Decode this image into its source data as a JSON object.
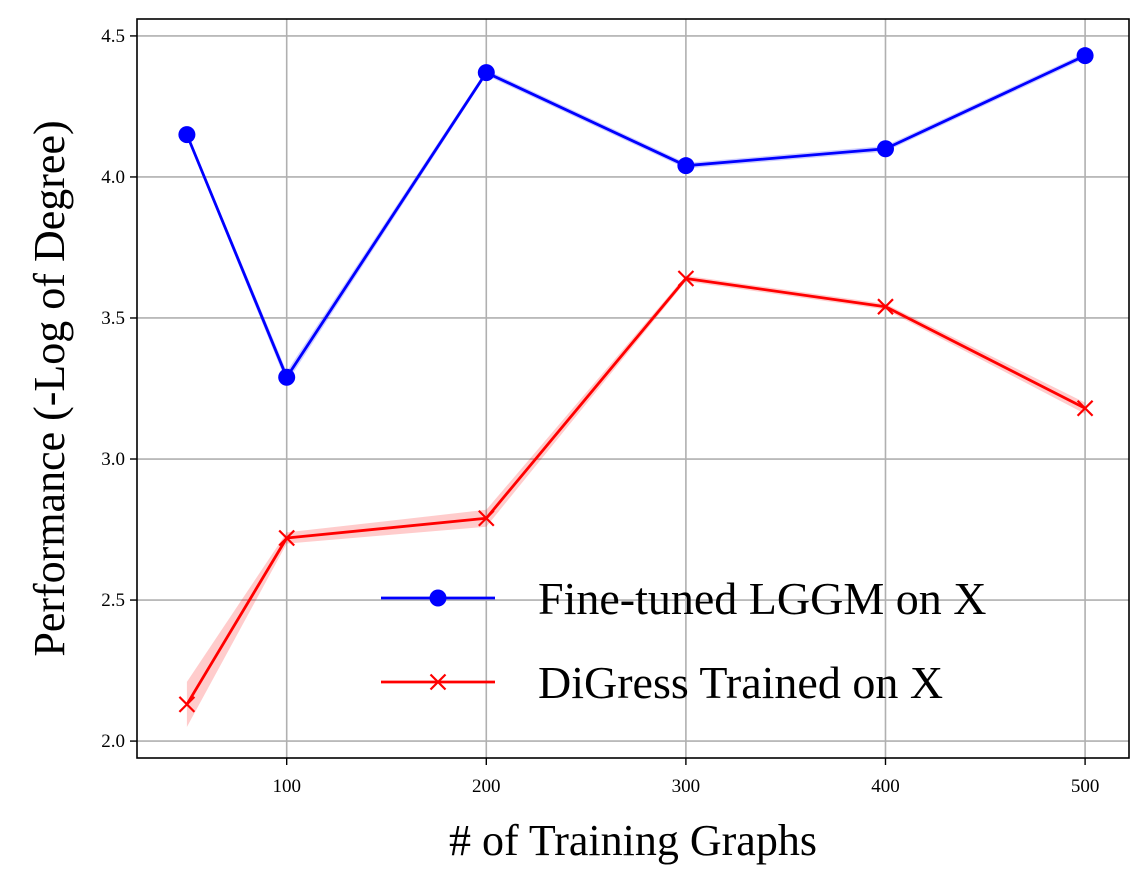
{
  "chart_data": {
    "type": "line",
    "title": "",
    "xlabel": "# of Training Graphs",
    "ylabel": "Performance (-Log of Degree)",
    "xlim": [
      25,
      522
    ],
    "ylim": [
      1.94,
      4.56
    ],
    "xticks": [
      100,
      200,
      300,
      400,
      500
    ],
    "yticks": [
      2.0,
      2.5,
      3.0,
      3.5,
      4.0,
      4.5
    ],
    "xtick_labels": [
      "100",
      "200",
      "300",
      "400",
      "500"
    ],
    "ytick_labels": [
      "2.0",
      "2.5",
      "3.0",
      "3.5",
      "4.0",
      "4.5"
    ],
    "grid": true,
    "legend_position": "lower-right",
    "x": [
      50,
      100,
      200,
      300,
      400,
      500
    ],
    "series": [
      {
        "name": "Fine-tuned LGGM on X",
        "color": "#0000ff",
        "marker": "circle",
        "values": [
          4.15,
          3.29,
          4.37,
          4.04,
          4.1,
          4.43
        ],
        "band": [
          0.01,
          0.02,
          0.01,
          0.01,
          0.01,
          0.01
        ]
      },
      {
        "name": "DiGress Trained on X",
        "color": "#ff0000",
        "marker": "x",
        "values": [
          2.13,
          2.72,
          2.79,
          3.64,
          3.54,
          3.18
        ],
        "band": [
          0.08,
          0.02,
          0.03,
          0.01,
          0.01,
          0.02
        ]
      }
    ]
  }
}
